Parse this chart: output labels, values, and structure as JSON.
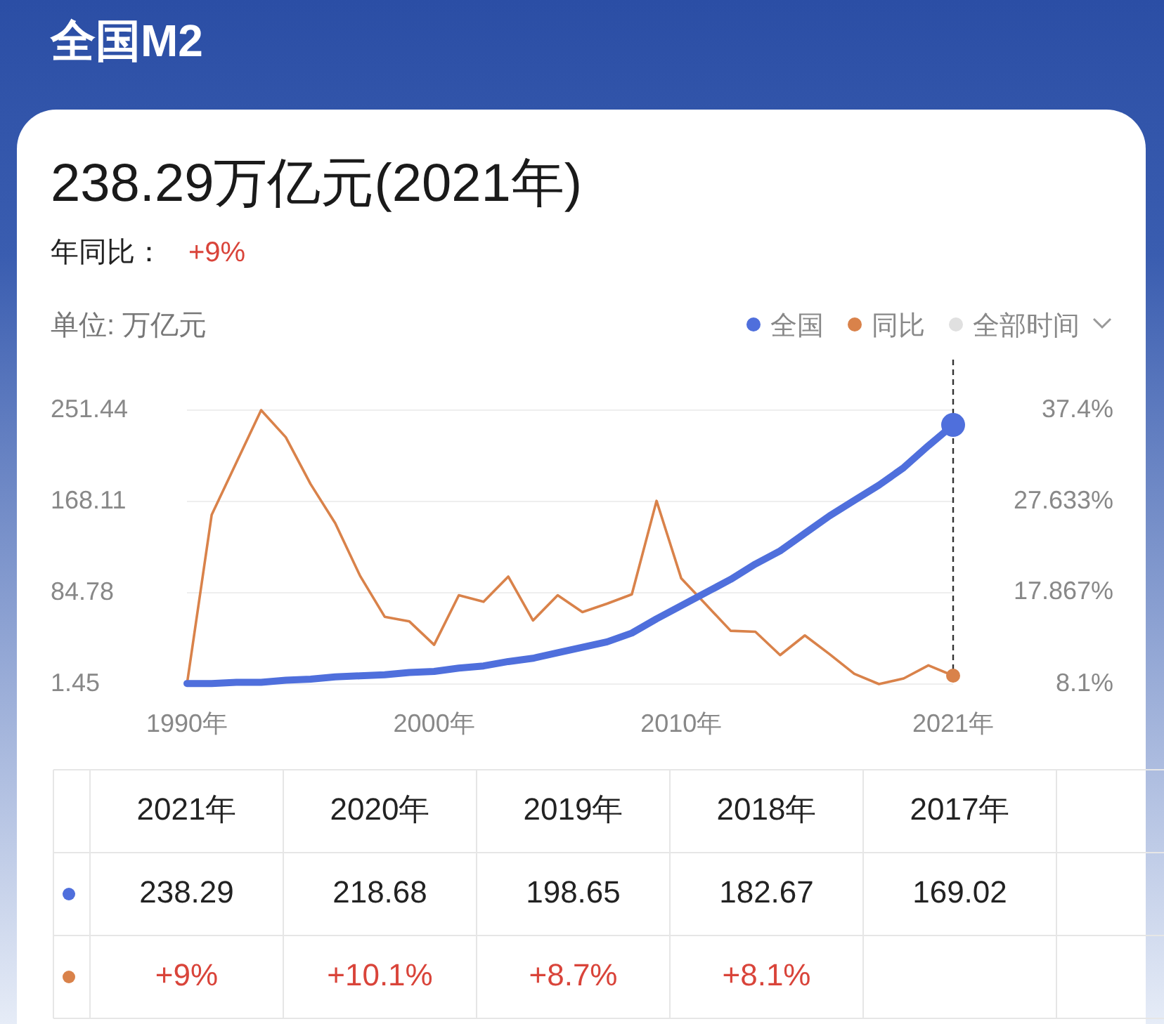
{
  "chart_data": {
    "type": "line",
    "title": "全国M2",
    "subtitle": "238.29万亿元(2021年)",
    "ylabel": "单位: 万亿元",
    "annotations": [
      "年同比：",
      "+9%",
      "全部时间",
      "2021年",
      "2020年",
      "2019年",
      "2018年",
      "2017年",
      "238.29",
      "218.68",
      "198.65",
      "182.67",
      "169.02",
      "+9%",
      "+10.1%",
      "+8.7%",
      "+8.1%"
    ],
    "x": [
      1990,
      1991,
      1992,
      1993,
      1994,
      1995,
      1996,
      1997,
      1998,
      1999,
      2000,
      2001,
      2002,
      2003,
      2004,
      2005,
      2006,
      2007,
      2008,
      2009,
      2010,
      2011,
      2012,
      2013,
      2014,
      2015,
      2016,
      2017,
      2018,
      2019,
      2020,
      2021
    ],
    "series": [
      {
        "name": "全国",
        "color": "#4f6fdc",
        "values": [
          2,
          2,
          3,
          3,
          5,
          6,
          8,
          9,
          10,
          12,
          13,
          16,
          18,
          22,
          25,
          30,
          35,
          40,
          48,
          61,
          73,
          85,
          97,
          111,
          123,
          139,
          155,
          169,
          183,
          199,
          219,
          238
        ]
      },
      {
        "name": "同比",
        "color": "#d9824a",
        "axis": "y2",
        "values": [
          8.1,
          26.2,
          31.8,
          37.4,
          34.5,
          29.5,
          25.3,
          19.7,
          15.3,
          14.8,
          12.3,
          17.6,
          16.9,
          19.6,
          14.9,
          17.6,
          15.8,
          16.7,
          17.7,
          27.7,
          19.4,
          16.6,
          13.8,
          13.7,
          11.2,
          13.3,
          11.3,
          9.2,
          8.1,
          8.7,
          10.1,
          9.0
        ]
      }
    ],
    "xlim": [
      1990,
      2021
    ],
    "xticks": [
      {
        "value": 1990,
        "label": "1990年"
      },
      {
        "value": 2000,
        "label": "2000年"
      },
      {
        "value": 2010,
        "label": "2010年"
      },
      {
        "value": 2021,
        "label": "2021年"
      }
    ],
    "ylim": [
      1.45,
      251.44
    ],
    "yticks": [
      1.45,
      84.78,
      168.11,
      251.44
    ],
    "y2lim": [
      8.1,
      37.4
    ],
    "y2ticks": [
      {
        "value": 8.1,
        "label": "8.1%"
      },
      {
        "value": 17.867,
        "label": "17.867%"
      },
      {
        "value": 27.633,
        "label": "27.633%"
      },
      {
        "value": 37.4,
        "label": "37.4%"
      }
    ],
    "ref_lines": [
      {
        "axis": "x",
        "value": 2021,
        "line_style": "dashed",
        "color": "#333333"
      }
    ],
    "grid": "y",
    "legend": "top right",
    "marker": "none",
    "line_style": "solid"
  }
}
